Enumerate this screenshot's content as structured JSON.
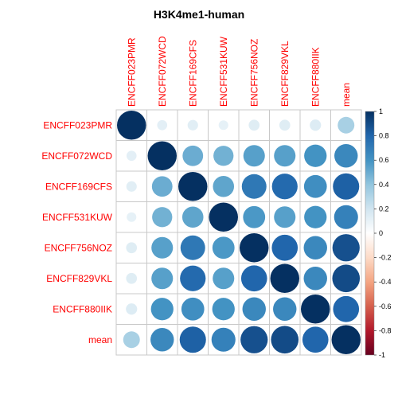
{
  "chart_data": {
    "type": "heatmap",
    "title": "H3K4me1-human",
    "labels": [
      "ENCFF023PMR",
      "ENCFF072WCD",
      "ENCFF169CFS",
      "ENCFF531KUW",
      "ENCFF756NOZ",
      "ENCFF829VKL",
      "ENCFF880IIK",
      "mean"
    ],
    "matrix": [
      [
        1.0,
        0.12,
        0.13,
        0.11,
        0.14,
        0.14,
        0.15,
        0.33
      ],
      [
        0.12,
        1.0,
        0.5,
        0.48,
        0.55,
        0.55,
        0.6,
        0.65
      ],
      [
        0.13,
        0.5,
        1.0,
        0.53,
        0.72,
        0.78,
        0.62,
        0.82
      ],
      [
        0.11,
        0.48,
        0.53,
        1.0,
        0.58,
        0.55,
        0.6,
        0.68
      ],
      [
        0.14,
        0.55,
        0.72,
        0.58,
        1.0,
        0.8,
        0.65,
        0.88
      ],
      [
        0.14,
        0.55,
        0.78,
        0.55,
        0.8,
        1.0,
        0.65,
        0.9
      ],
      [
        0.15,
        0.6,
        0.62,
        0.6,
        0.65,
        0.65,
        1.0,
        0.8
      ],
      [
        0.33,
        0.65,
        0.82,
        0.68,
        0.88,
        0.9,
        0.8,
        1.0
      ]
    ],
    "colorbar": {
      "ticks": [
        "1",
        "0.8",
        "0.6",
        "0.4",
        "0.2",
        "0",
        "-0.2",
        "-0.4",
        "-0.6",
        "-0.8",
        "-1"
      ],
      "range": [
        -1,
        1
      ],
      "colors": [
        "#67001F",
        "#B2182B",
        "#D6604D",
        "#F4A582",
        "#FDDBC7",
        "#FFFFFF",
        "#D1E5F0",
        "#92C5DE",
        "#4393C3",
        "#2166AC",
        "#053061"
      ]
    },
    "grid": true,
    "legend": "right"
  }
}
